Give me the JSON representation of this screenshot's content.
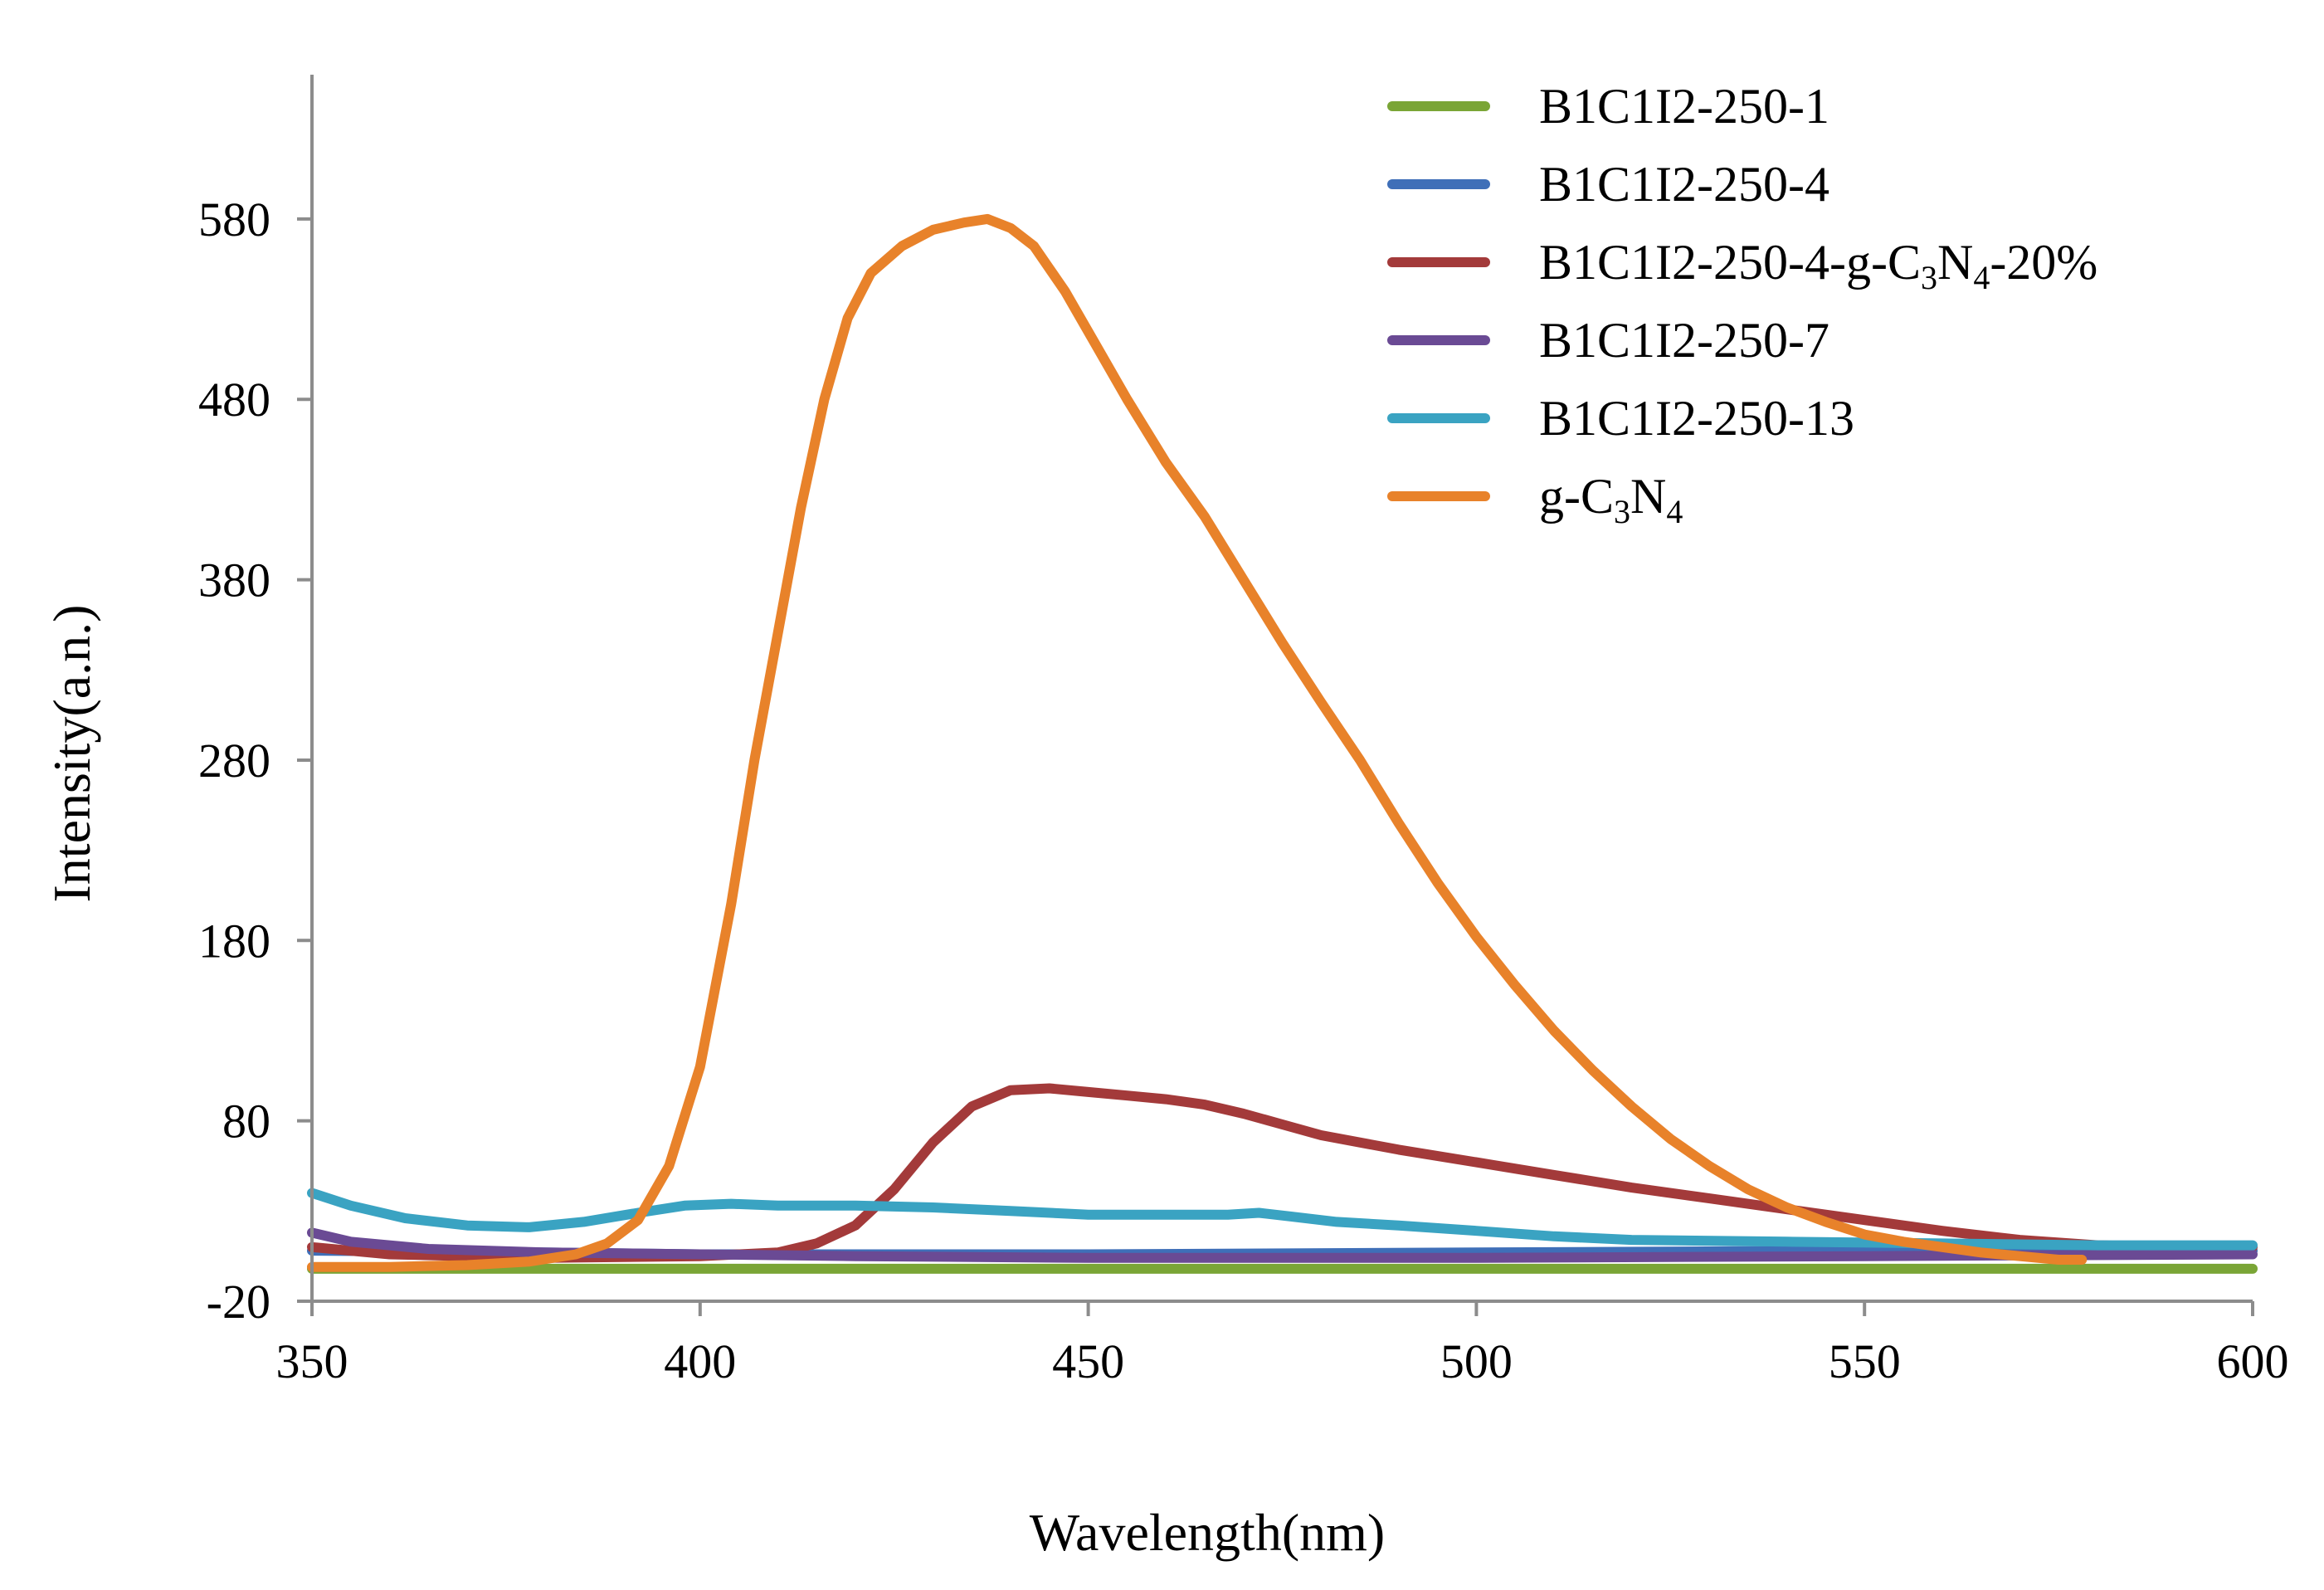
{
  "chart_data": {
    "type": "line",
    "title": "",
    "xlabel": "Wavelength(nm)",
    "ylabel": "Intensity(a.n.)",
    "xlim": [
      350,
      600
    ],
    "ylim": [
      -20,
      660
    ],
    "xticks": [
      350,
      400,
      450,
      500,
      550,
      600
    ],
    "yticks": [
      -20,
      80,
      180,
      280,
      380,
      480,
      580
    ],
    "grid": false,
    "legend_position": "top-right",
    "series": [
      {
        "name": "B1C1I2-250-1",
        "legend_parts": [
          {
            "t": "B1C1I2-250-1",
            "sub": false
          }
        ],
        "color": "#7aa536",
        "points": [
          [
            350,
            -2
          ],
          [
            400,
            -2
          ],
          [
            450,
            -2
          ],
          [
            500,
            -2
          ],
          [
            550,
            -2
          ],
          [
            600,
            -2
          ]
        ]
      },
      {
        "name": "B1C1I2-250-4",
        "legend_parts": [
          {
            "t": "B1C1I2-250-4",
            "sub": false
          }
        ],
        "color": "#3f6fb8",
        "points": [
          [
            350,
            8
          ],
          [
            380,
            7
          ],
          [
            400,
            6
          ],
          [
            450,
            6
          ],
          [
            500,
            7
          ],
          [
            550,
            8
          ],
          [
            600,
            8
          ]
        ]
      },
      {
        "name": "B1C1I2-250-4-g-C3N4-20%",
        "legend_parts": [
          {
            "t": "B1C1I2-250-4-g-C",
            "sub": false
          },
          {
            "t": "3",
            "sub": true
          },
          {
            "t": "N",
            "sub": false
          },
          {
            "t": "4",
            "sub": true
          },
          {
            "t": "-20%",
            "sub": false
          }
        ],
        "color": "#a33a3a",
        "points": [
          [
            350,
            10
          ],
          [
            360,
            6
          ],
          [
            380,
            4
          ],
          [
            400,
            5
          ],
          [
            410,
            7
          ],
          [
            415,
            12
          ],
          [
            420,
            22
          ],
          [
            425,
            42
          ],
          [
            430,
            68
          ],
          [
            435,
            88
          ],
          [
            440,
            97
          ],
          [
            445,
            98
          ],
          [
            450,
            96
          ],
          [
            455,
            94
          ],
          [
            460,
            92
          ],
          [
            465,
            89
          ],
          [
            470,
            84
          ],
          [
            475,
            78
          ],
          [
            480,
            72
          ],
          [
            490,
            64
          ],
          [
            500,
            57
          ],
          [
            510,
            50
          ],
          [
            520,
            43
          ],
          [
            530,
            37
          ],
          [
            540,
            31
          ],
          [
            550,
            25
          ],
          [
            560,
            19
          ],
          [
            570,
            14
          ],
          [
            580,
            11
          ],
          [
            590,
            10
          ],
          [
            600,
            10
          ]
        ]
      },
      {
        "name": "B1C1I2-250-7",
        "legend_parts": [
          {
            "t": "B1C1I2-250-7",
            "sub": false
          }
        ],
        "color": "#6a4a94",
        "points": [
          [
            350,
            18
          ],
          [
            355,
            13
          ],
          [
            365,
            9
          ],
          [
            380,
            7
          ],
          [
            400,
            6
          ],
          [
            420,
            5
          ],
          [
            450,
            4
          ],
          [
            500,
            4
          ],
          [
            550,
            5
          ],
          [
            600,
            6
          ]
        ]
      },
      {
        "name": "B1C1I2-250-13",
        "legend_parts": [
          {
            "t": "B1C1I2-250-13",
            "sub": false
          }
        ],
        "color": "#3aa3c2",
        "points": [
          [
            350,
            40
          ],
          [
            355,
            33
          ],
          [
            362,
            26
          ],
          [
            370,
            22
          ],
          [
            378,
            21
          ],
          [
            385,
            24
          ],
          [
            392,
            29
          ],
          [
            398,
            33
          ],
          [
            404,
            34
          ],
          [
            410,
            33
          ],
          [
            420,
            33
          ],
          [
            430,
            32
          ],
          [
            440,
            30
          ],
          [
            450,
            28
          ],
          [
            460,
            28
          ],
          [
            468,
            28
          ],
          [
            472,
            29
          ],
          [
            476,
            27
          ],
          [
            482,
            24
          ],
          [
            490,
            22
          ],
          [
            500,
            19
          ],
          [
            510,
            16
          ],
          [
            520,
            14
          ],
          [
            540,
            13
          ],
          [
            560,
            12
          ],
          [
            580,
            11
          ],
          [
            600,
            11
          ]
        ]
      },
      {
        "name": "g-C3N4",
        "legend_parts": [
          {
            "t": "g-C",
            "sub": false
          },
          {
            "t": "3",
            "sub": true
          },
          {
            "t": "N",
            "sub": false
          },
          {
            "t": "4",
            "sub": true
          }
        ],
        "color": "#e8822a",
        "points": [
          [
            350,
            -1
          ],
          [
            360,
            -1
          ],
          [
            370,
            0
          ],
          [
            378,
            2
          ],
          [
            384,
            6
          ],
          [
            388,
            12
          ],
          [
            392,
            25
          ],
          [
            396,
            55
          ],
          [
            400,
            110
          ],
          [
            404,
            200
          ],
          [
            407,
            280
          ],
          [
            410,
            350
          ],
          [
            413,
            420
          ],
          [
            416,
            480
          ],
          [
            419,
            525
          ],
          [
            422,
            550
          ],
          [
            426,
            565
          ],
          [
            430,
            574
          ],
          [
            434,
            578
          ],
          [
            437,
            580
          ],
          [
            440,
            575
          ],
          [
            443,
            565
          ],
          [
            447,
            540
          ],
          [
            451,
            510
          ],
          [
            455,
            480
          ],
          [
            460,
            445
          ],
          [
            465,
            415
          ],
          [
            470,
            380
          ],
          [
            475,
            345
          ],
          [
            480,
            312
          ],
          [
            485,
            280
          ],
          [
            490,
            245
          ],
          [
            495,
            212
          ],
          [
            500,
            182
          ],
          [
            505,
            155
          ],
          [
            510,
            130
          ],
          [
            515,
            108
          ],
          [
            520,
            88
          ],
          [
            525,
            70
          ],
          [
            530,
            55
          ],
          [
            535,
            42
          ],
          [
            540,
            32
          ],
          [
            545,
            24
          ],
          [
            550,
            17
          ],
          [
            555,
            13
          ],
          [
            560,
            10
          ],
          [
            565,
            7
          ],
          [
            570,
            5
          ],
          [
            575,
            3
          ],
          [
            578,
            3
          ]
        ]
      }
    ]
  }
}
